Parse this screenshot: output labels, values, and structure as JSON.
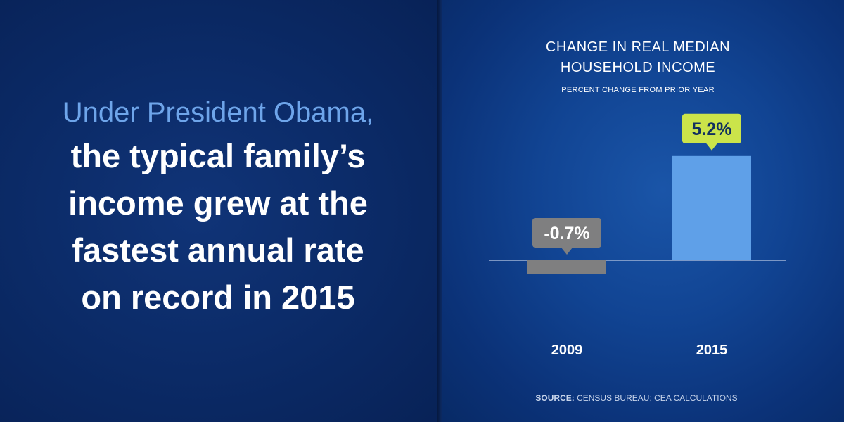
{
  "headline": {
    "lead": "Under President Obama,",
    "body": "the typical family’s income grew at the fastest annual rate on record in 2015"
  },
  "chart_data": {
    "type": "bar",
    "title_lines": [
      "CHANGE IN REAL MEDIAN",
      "HOUSEHOLD INCOME"
    ],
    "subtitle": "PERCENT CHANGE FROM PRIOR YEAR",
    "categories": [
      "2009",
      "2015"
    ],
    "values": [
      -0.7,
      5.2
    ],
    "data_labels": [
      "-0.7%",
      "5.2%"
    ],
    "unit": "%",
    "ylim": [
      -0.7,
      5.2
    ],
    "grid": false,
    "bar_colors": [
      "#7f7f80",
      "#5fa0e8"
    ],
    "label_box_colors": [
      "#7f7f80",
      "#cbe44a"
    ],
    "label_text_colors": [
      "#ffffff",
      "#12305f"
    ],
    "source_prefix": "SOURCE:",
    "source_text": " CENSUS BUREAU; CEA CALCULATIONS"
  },
  "colors": {
    "background_left": "#0b2a66",
    "background_right": "#114493",
    "headline_lead": "#6ea5ea",
    "headline_body": "#ffffff",
    "axis_line": "#9fb3d6"
  }
}
